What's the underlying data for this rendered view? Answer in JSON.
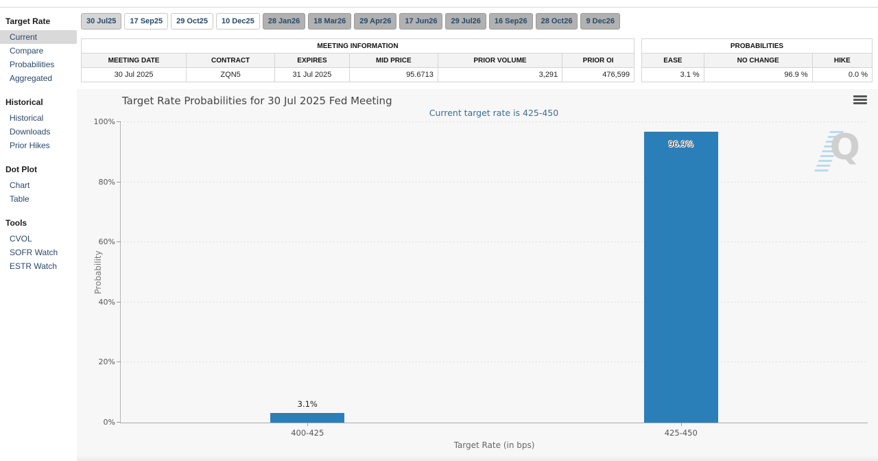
{
  "sidebar": {
    "sections": [
      {
        "header": "Target Rate",
        "items": [
          {
            "label": "Current",
            "active": true
          },
          {
            "label": "Compare",
            "active": false
          },
          {
            "label": "Probabilities",
            "active": false
          },
          {
            "label": "Aggregated",
            "active": false
          }
        ]
      },
      {
        "header": "Historical",
        "items": [
          {
            "label": "Historical",
            "active": false
          },
          {
            "label": "Downloads",
            "active": false
          },
          {
            "label": "Prior Hikes",
            "active": false
          }
        ]
      },
      {
        "header": "Dot Plot",
        "items": [
          {
            "label": "Chart",
            "active": false
          },
          {
            "label": "Table",
            "active": false
          }
        ]
      },
      {
        "header": "Tools",
        "items": [
          {
            "label": "CVOL",
            "active": false
          },
          {
            "label": "SOFR Watch",
            "active": false
          },
          {
            "label": "ESTR Watch",
            "active": false
          }
        ]
      }
    ]
  },
  "meeting_tabs": [
    {
      "label": "30 Jul25",
      "state": "active"
    },
    {
      "label": "17 Sep25",
      "state": "open"
    },
    {
      "label": "29 Oct25",
      "state": "open"
    },
    {
      "label": "10 Dec25",
      "state": "open"
    },
    {
      "label": "28 Jan26",
      "state": "future"
    },
    {
      "label": "18 Mar26",
      "state": "future"
    },
    {
      "label": "29 Apr26",
      "state": "future"
    },
    {
      "label": "17 Jun26",
      "state": "future"
    },
    {
      "label": "29 Jul26",
      "state": "future"
    },
    {
      "label": "16 Sep26",
      "state": "future"
    },
    {
      "label": "28 Oct26",
      "state": "future"
    },
    {
      "label": "9 Dec26",
      "state": "future"
    }
  ],
  "meeting_info": {
    "title": "MEETING INFORMATION",
    "columns": [
      "MEETING DATE",
      "CONTRACT",
      "EXPIRES",
      "MID PRICE",
      "PRIOR VOLUME",
      "PRIOR OI"
    ],
    "row": [
      "30 Jul 2025",
      "ZQN5",
      "31 Jul 2025",
      "95.6713",
      "3,291",
      "476,599"
    ]
  },
  "probabilities": {
    "title": "PROBABILITIES",
    "columns": [
      "EASE",
      "NO CHANGE",
      "HIKE"
    ],
    "row": [
      "3.1 %",
      "96.9 %",
      "0.0 %"
    ]
  },
  "chart_data": {
    "type": "bar",
    "title": "Target Rate Probabilities for 30 Jul 2025 Fed Meeting",
    "subtitle": "Current target rate is 425-450",
    "categories": [
      "400-425",
      "425-450"
    ],
    "values": [
      3.1,
      96.9
    ],
    "bar_labels": [
      "3.1%",
      "96.9%"
    ],
    "xlabel": "Target Rate (in bps)",
    "ylabel": "Probability",
    "ylim": [
      0,
      100
    ],
    "ytick_labels": [
      "0%",
      "20%",
      "40%",
      "60%",
      "80%",
      "100%"
    ],
    "ytick_values": [
      0,
      20,
      40,
      60,
      80,
      100
    ],
    "grid": "horizontal-dotted",
    "legend": "none",
    "bar_color": "#2b7fb8"
  },
  "icons": {
    "chart_menu": "hamburger-menu-icon",
    "watermark": "quikstrike-q-watermark"
  }
}
